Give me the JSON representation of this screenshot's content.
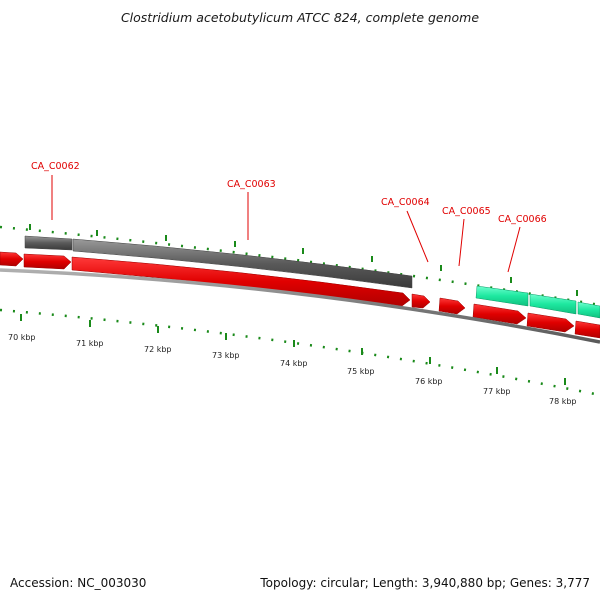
{
  "title": "Clostridium acetobutylicum ATCC 824, complete genome",
  "accession_text": "Accession: NC_003030",
  "summary_text": "Topology: circular; Length: 3,940,880 bp; Genes: 3,777",
  "gene_labels": [
    "CA_C0062",
    "CA_C0063",
    "CA_C0064",
    "CA_C0065",
    "CA_C0066"
  ],
  "kbp_labels": [
    "70 kbp",
    "71 kbp",
    "72 kbp",
    "73 kbp",
    "74 kbp",
    "75 kbp",
    "76 kbp",
    "77 kbp",
    "78 kbp"
  ],
  "colors": {
    "forward_cds": "#e00000",
    "gray_feature": "#555555",
    "green_feature": "#1ee8a0",
    "tick": "#1a8a1a",
    "backbone": "#808080",
    "label": "#e00000"
  }
}
